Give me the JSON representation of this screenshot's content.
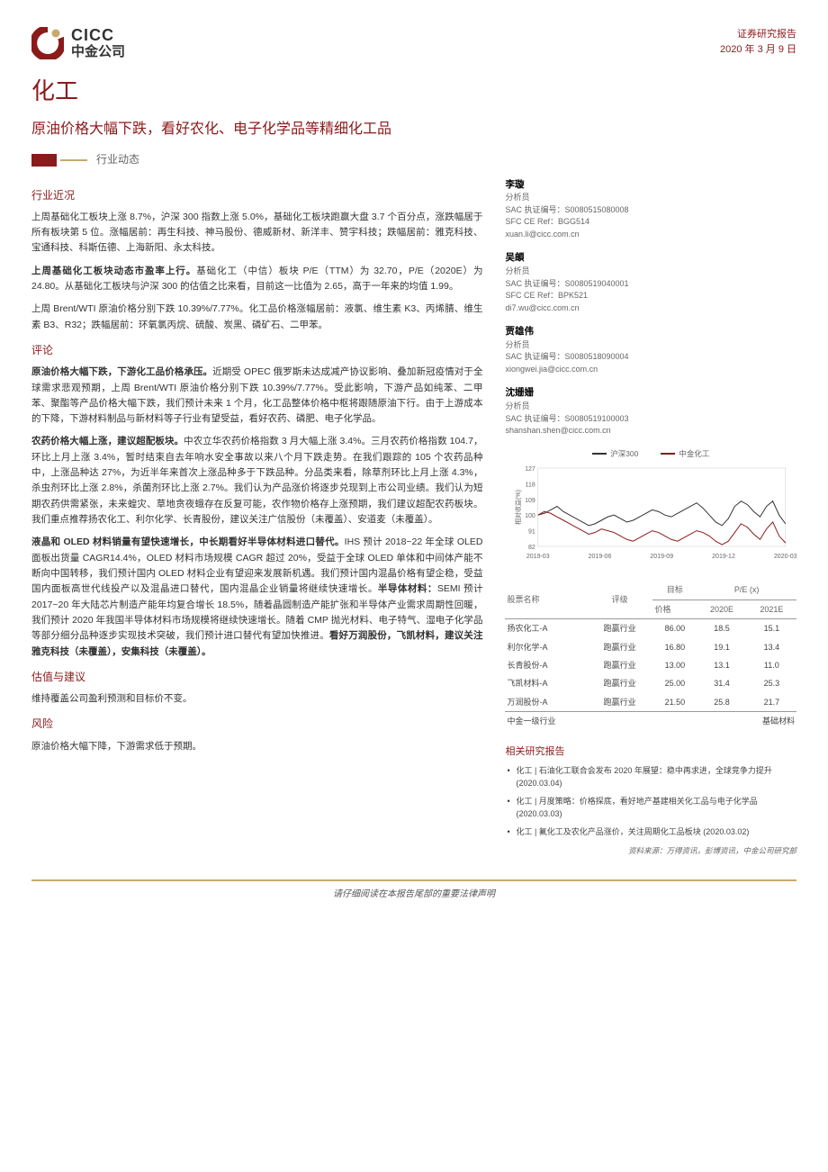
{
  "header": {
    "logo_en": "CICC",
    "logo_cn": "中金公司",
    "doc_type": "证券研究报告",
    "date": "2020 年 3 月 9 日"
  },
  "title": "化工",
  "subtitle": "原油价格大幅下跌，看好农化、电子化学品等精细化工品",
  "tag": "行业动态",
  "sections": {
    "recent": {
      "head": "行业近况",
      "p1": "上周基础化工板块上涨 8.7%，沪深 300 指数上涨 5.0%，基础化工板块跑赢大盘 3.7 个百分点，涨跌幅居于所有板块第 5 位。涨幅居前：再生科技、神马股份、德威新材、新洋丰、赞宇科技；跌幅居前：雅克科技、宝通科技、科斯伍德、上海新阳、永太科技。",
      "p2_bold": "上周基础化工板块动态市盈率上行。",
      "p2_rest": "基础化工（中信）板块 P/E（TTM）为 32.70，P/E（2020E）为 24.80。从基础化工板块与沪深 300 的估值之比来看，目前这一比值为 2.65，高于一年来的均值 1.99。",
      "p3": "上周 Brent/WTI 原油价格分别下跌 10.39%/7.77%。化工品价格涨幅居前：液氯、维生素 K3、丙烯腈、维生素 B3、R32；跌幅居前：环氧氯丙烷、硫酸、炭黑、磷矿石、二甲苯。"
    },
    "comment": {
      "head": "评论",
      "p1_bold": "原油价格大幅下跌，下游化工品价格承压。",
      "p1_rest": "近期受 OPEC 俄罗斯未达成减产协议影响、叠加新冠疫情对于全球需求悲观预期，上周 Brent/WTI 原油价格分别下跌 10.39%/7.77%。受此影响，下游产品如纯苯、二甲苯、聚酯等产品价格大幅下跌，我们预计未来 1 个月，化工品整体价格中枢将跟随原油下行。由于上游成本的下降，下游材料制品与新材料等子行业有望受益，看好农药、磷肥、电子化学品。",
      "p2_bold": "农药价格大幅上涨，建议超配板块。",
      "p2_rest": "中农立华农药价格指数 3 月大幅上涨 3.4%。三月农药价格指数 104.7，环比上月上涨 3.4%，暂时结束自去年响水安全事故以来八个月下跌走势。在我们跟踪的 105 个农药品种中，上涨品种达 27%，为近半年来首次上涨品种多于下跌品种。分品类来看，除草剂环比上月上涨 4.3%，杀虫剂环比上涨 2.8%，杀菌剂环比上涨 2.7%。我们认为产品涨价将逐步兑现到上市公司业绩。我们认为短期农药供需紧张，未来蝗灾、草地贪夜蛾存在反复可能，农作物价格存上涨预期，我们建议超配农药板块。我们重点推荐扬农化工、利尔化学、长青股份，建议关注广信股份（未覆盖）、安道麦（未覆盖）。",
      "p3_bold": "液晶和 OLED 材料销量有望快速增长，中长期看好半导体材料进口替代。",
      "p3_rest": "IHS 预计 2018~22 年全球 OLED 面板出货量 CAGR14.4%，OLED 材料市场规模 CAGR 超过 20%，受益于全球 OLED 单体和中间体产能不断向中国转移，我们预计国内 OLED 材料企业有望迎来发展新机遇。我们预计国内混晶价格有望企稳，受益国内面板高世代线投产以及混晶进口替代，国内混晶企业销量将继续快速增长。",
      "p3_bold2": "半导体材料：",
      "p3_rest2": "SEMI 预计 2017~20 年大陆芯片制造产能年均复合增长 18.5%，随着晶圆制造产能扩张和半导体产业需求周期性回暖，我们预计 2020 年我国半导体材料市场规模将继续快速增长。随着 CMP 抛光材料、电子特气、湿电子化学品等部分细分品种逐步实现技术突破，我们预计进口替代有望加快推进。",
      "p3_bold3": "看好万润股份，飞凯材料，建议关注雅克科技（未覆盖），安集科技（未覆盖）。"
    },
    "valuation": {
      "head": "估值与建议",
      "p1": "维持覆盖公司盈利预测和目标价不变。"
    },
    "risk": {
      "head": "风险",
      "p1": "原油价格大幅下降，下游需求低于预期。"
    }
  },
  "analysts": [
    {
      "name": "李璇",
      "role": "分析员",
      "sac": "SAC 执证编号：S0080515080008",
      "sfc": "SFC CE Ref：BGG514",
      "email": "xuan.li@cicc.com.cn"
    },
    {
      "name": "吴頔",
      "role": "分析员",
      "sac": "SAC 执证编号：S0080519040001",
      "sfc": "SFC CE Ref：BPK521",
      "email": "di7.wu@cicc.com.cn"
    },
    {
      "name": "贾雄伟",
      "role": "分析员",
      "sac": "SAC 执证编号：S0080518090004",
      "sfc": "",
      "email": "xiongwei.jia@cicc.com.cn"
    },
    {
      "name": "沈姗姗",
      "role": "分析员",
      "sac": "SAC 执证编号：S0080519100003",
      "sfc": "",
      "email": "shanshan.shen@cicc.com.cn"
    }
  ],
  "chart": {
    "legend1": "沪深300",
    "legend2": "中金化工",
    "legend1_color": "#333333",
    "legend2_color": "#8b1a1a",
    "ylabel": "相对收益(%)",
    "y_ticks": [
      82,
      91,
      100,
      109,
      118,
      127
    ],
    "x_ticks": [
      "2019-03",
      "2019-06",
      "2019-09",
      "2019-12",
      "2020-03"
    ],
    "series1": [
      100,
      101,
      103,
      105,
      102,
      100,
      98,
      96,
      94,
      95,
      97,
      99,
      100,
      98,
      96,
      97,
      99,
      101,
      103,
      102,
      100,
      99,
      101,
      103,
      105,
      107,
      104,
      100,
      96,
      94,
      98,
      105,
      108,
      106,
      102,
      99,
      105,
      108,
      100,
      95
    ],
    "series2": [
      100,
      102,
      101,
      99,
      97,
      95,
      93,
      91,
      89,
      90,
      92,
      91,
      90,
      88,
      86,
      85,
      87,
      89,
      91,
      90,
      88,
      86,
      85,
      87,
      89,
      91,
      90,
      88,
      85,
      83,
      85,
      90,
      95,
      93,
      89,
      86,
      92,
      96,
      88,
      84
    ]
  },
  "table": {
    "h_name": "股票名称",
    "h_rating": "评级",
    "h_target": "目标",
    "h_price": "价格",
    "h_pe": "P/E (x)",
    "h_2020e": "2020E",
    "h_2021e": "2021E",
    "rows": [
      {
        "name": "扬农化工-A",
        "rating": "跑赢行业",
        "price": "86.00",
        "pe20": "18.5",
        "pe21": "15.1"
      },
      {
        "name": "利尔化学-A",
        "rating": "跑赢行业",
        "price": "16.80",
        "pe20": "19.1",
        "pe21": "13.4"
      },
      {
        "name": "长青股份-A",
        "rating": "跑赢行业",
        "price": "13.00",
        "pe20": "13.1",
        "pe21": "11.0"
      },
      {
        "name": "飞凯材料-A",
        "rating": "跑赢行业",
        "price": "25.00",
        "pe20": "31.4",
        "pe21": "25.3"
      },
      {
        "name": "万润股份-A",
        "rating": "跑赢行业",
        "price": "21.50",
        "pe20": "25.8",
        "pe21": "21.7"
      }
    ],
    "bottom": "中金一级行业",
    "bottom_val": "基础材料"
  },
  "reports": {
    "title": "相关研究报告",
    "items": [
      "化工 | 石油化工联合会发布 2020 年展望：稳中再求进，全球竞争力提升 (2020.03.04)",
      "化工 | 月度策略：价格探底，看好地产基建相关化工品与电子化学品 (2020.03.03)",
      "化工 | 氟化工及农化产品涨价，关注周期化工品板块 (2020.03.02)"
    ]
  },
  "source": "资料来源：万得资讯，彭博资讯，中金公司研究部",
  "footer": "请仔细阅读在本报告尾部的重要法律声明"
}
